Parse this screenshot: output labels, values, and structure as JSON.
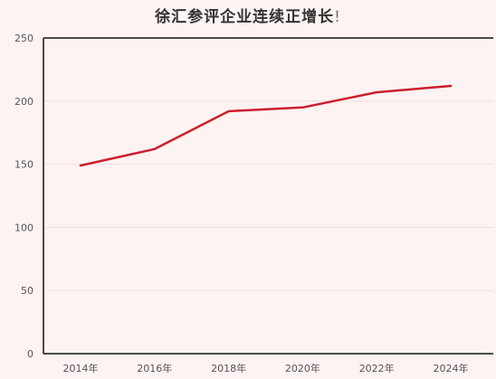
{
  "chart_data": {
    "type": "line",
    "title": "徐汇参评企业连续正增长",
    "title_suffix": "!",
    "categories": [
      "2014年",
      "2016年",
      "2018年",
      "2020年",
      "2022年",
      "2024年"
    ],
    "x": [
      2014,
      2016,
      2018,
      2020,
      2022,
      2024
    ],
    "series": [
      {
        "values": [
          149,
          162,
          192,
          195,
          207,
          212
        ]
      }
    ],
    "ylim": [
      0,
      250
    ],
    "yticks": [
      0,
      50,
      100,
      150,
      200,
      250
    ],
    "xlabel": "",
    "ylabel": "",
    "grid": true,
    "legend": "none"
  },
  "colors": {
    "line": "#cc1f2e",
    "background": "#fdf3f2",
    "grid": "#f3dedc",
    "axis": "#111111"
  }
}
